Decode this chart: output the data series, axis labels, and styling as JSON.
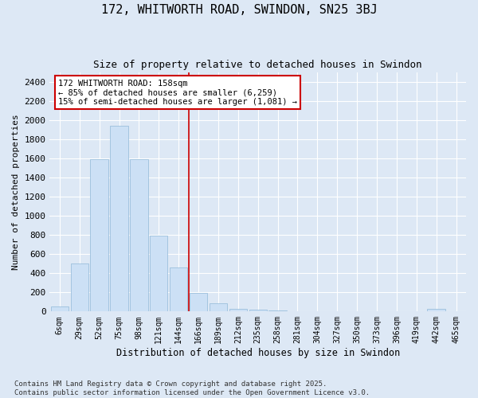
{
  "title": "172, WHITWORTH ROAD, SWINDON, SN25 3BJ",
  "subtitle": "Size of property relative to detached houses in Swindon",
  "xlabel": "Distribution of detached houses by size in Swindon",
  "ylabel": "Number of detached properties",
  "categories": [
    "6sqm",
    "29sqm",
    "52sqm",
    "75sqm",
    "98sqm",
    "121sqm",
    "144sqm",
    "166sqm",
    "189sqm",
    "212sqm",
    "235sqm",
    "258sqm",
    "281sqm",
    "304sqm",
    "327sqm",
    "350sqm",
    "373sqm",
    "396sqm",
    "419sqm",
    "442sqm",
    "465sqm"
  ],
  "values": [
    50,
    500,
    1590,
    1940,
    1590,
    790,
    460,
    195,
    85,
    30,
    20,
    10,
    5,
    0,
    0,
    0,
    0,
    0,
    0,
    30,
    0
  ],
  "bar_color": "#cce0f5",
  "bar_edge_color": "#90b8d8",
  "vline_x_idx": 6,
  "vline_color": "#cc0000",
  "annotation_text": "172 WHITWORTH ROAD: 158sqm\n← 85% of detached houses are smaller (6,259)\n15% of semi-detached houses are larger (1,081) →",
  "annotation_box_edgecolor": "#cc0000",
  "bg_color": "#dde8f5",
  "grid_color": "#ffffff",
  "ylim": [
    0,
    2500
  ],
  "footer_line1": "Contains HM Land Registry data © Crown copyright and database right 2025.",
  "footer_line2": "Contains public sector information licensed under the Open Government Licence v3.0."
}
